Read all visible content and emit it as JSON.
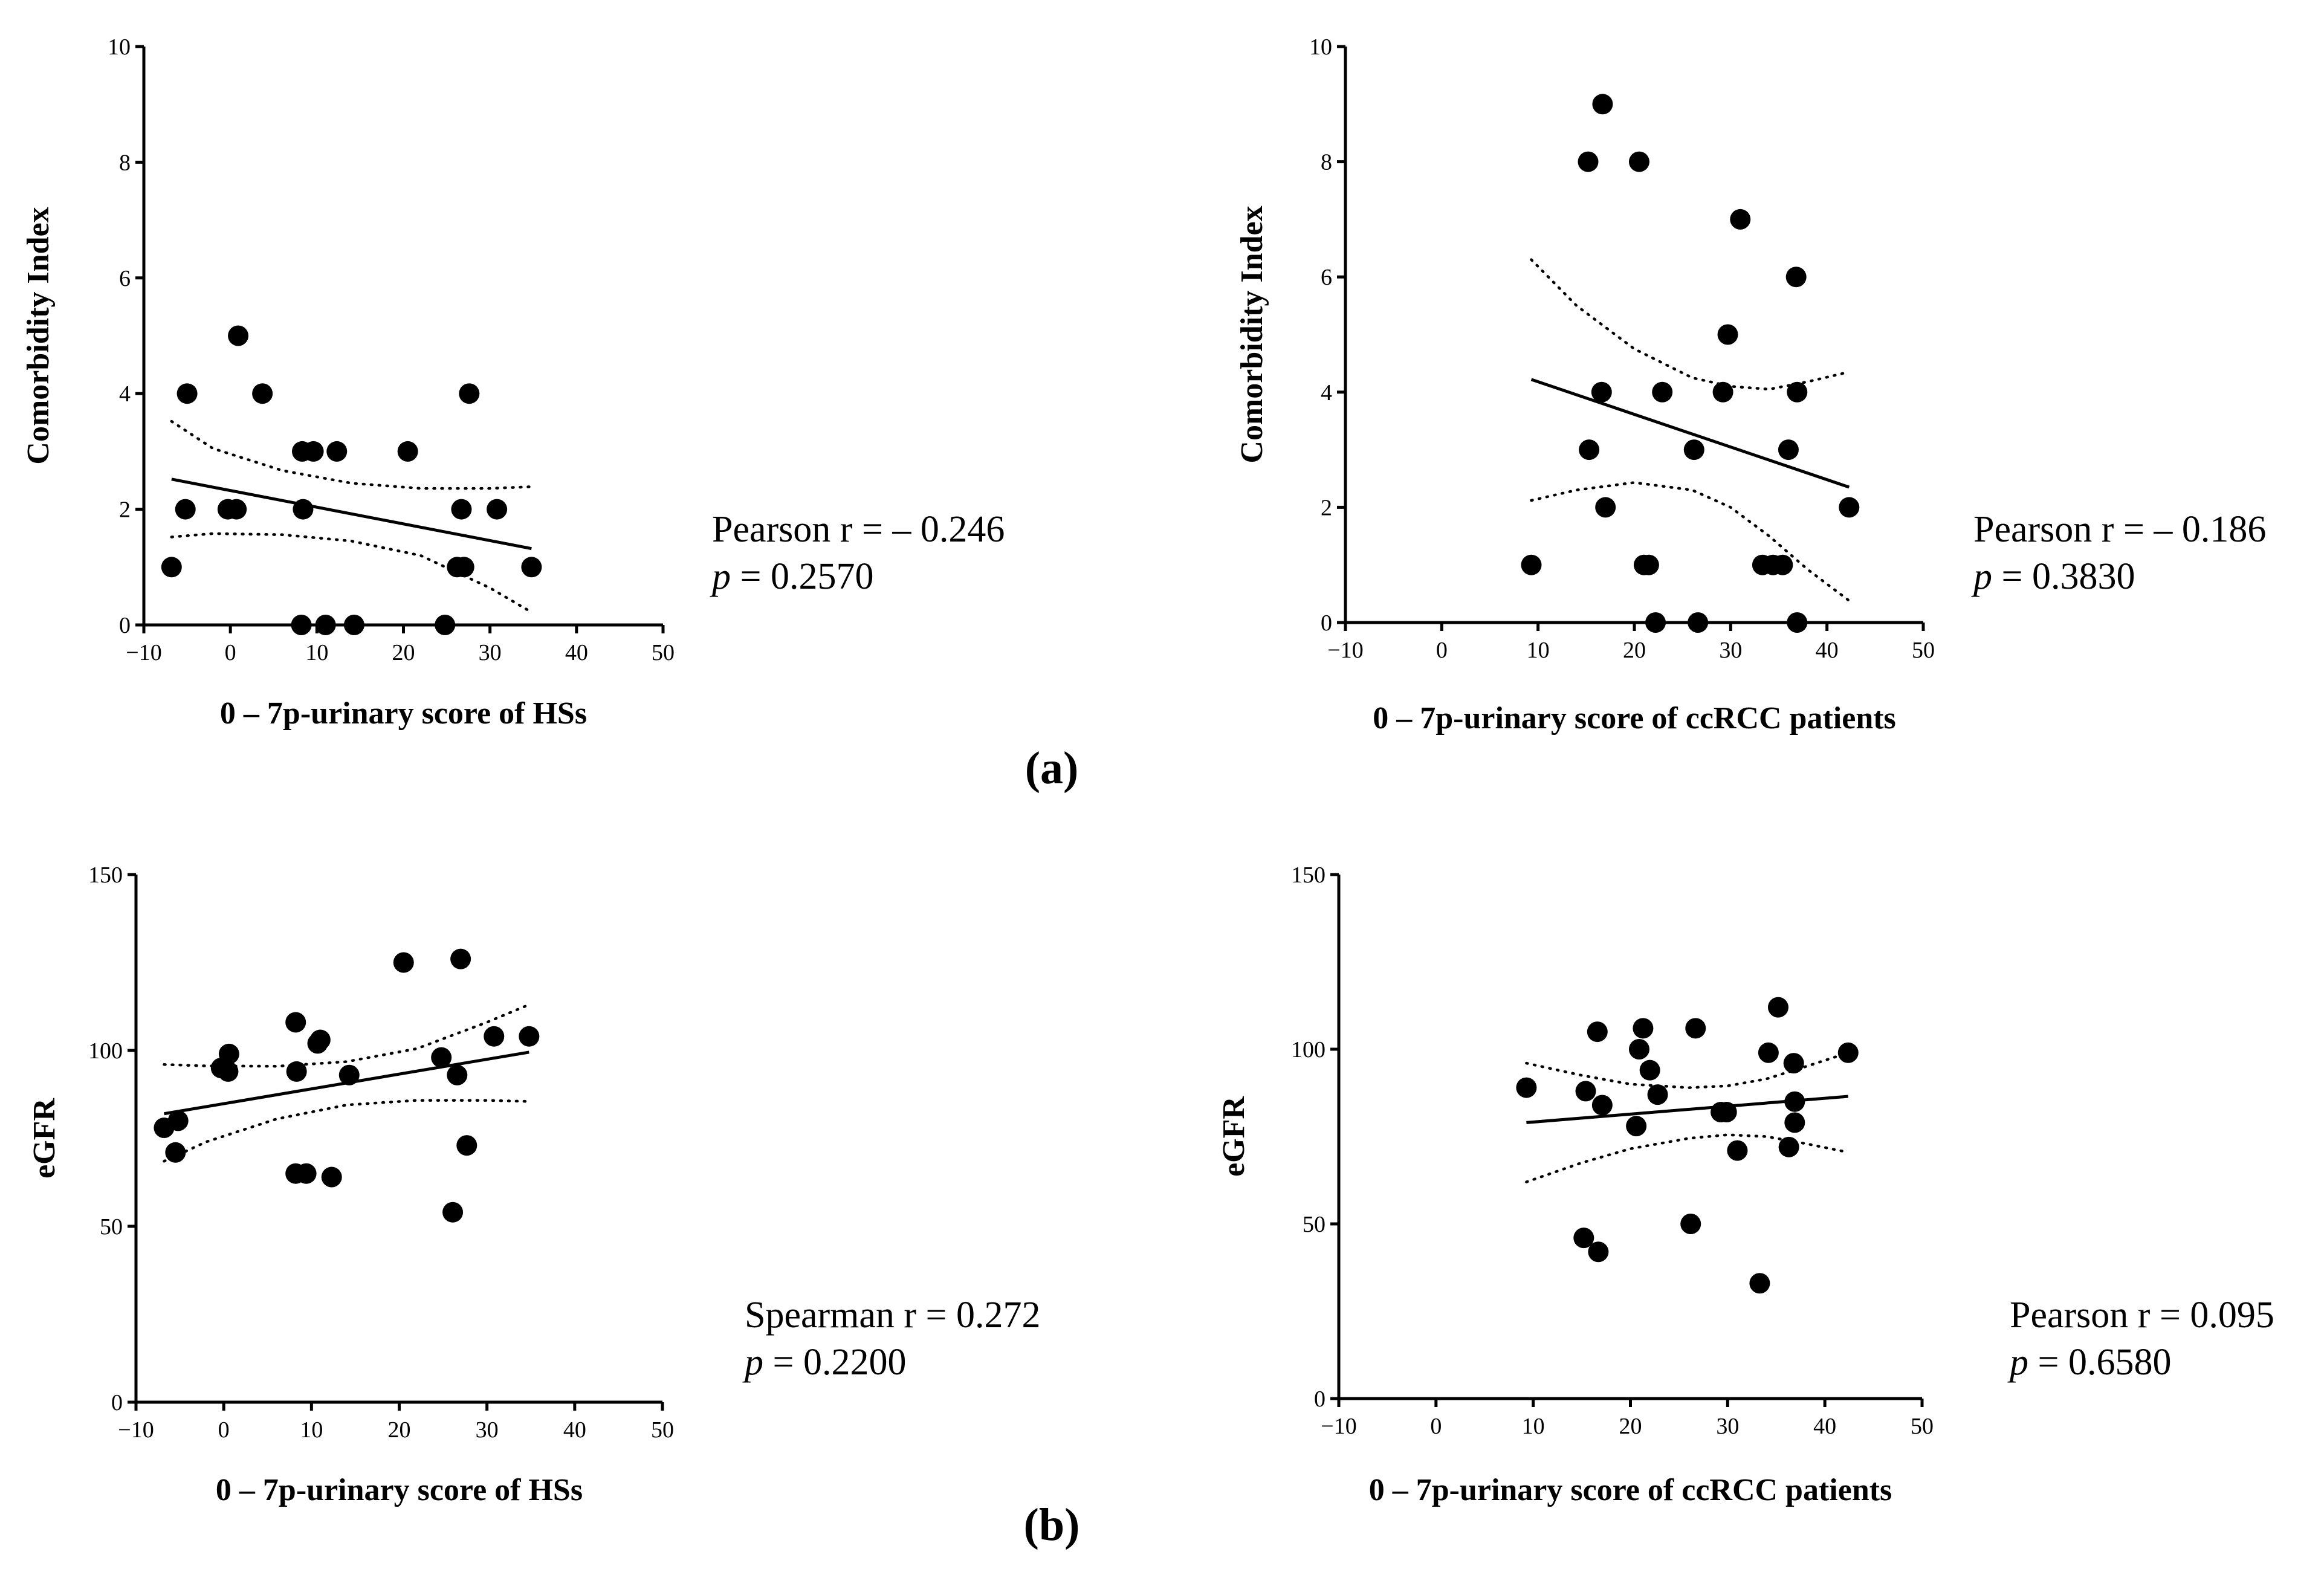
{
  "panel_labels": [
    "(a)",
    "(b)"
  ],
  "chart_data": [
    {
      "type": "scatter",
      "panel": "(a)",
      "title": "",
      "xlabel": "0 – 7p-urinary score of HSs",
      "ylabel": "Comorbidity Index",
      "xlim": [
        -10,
        50
      ],
      "ylim": [
        0,
        10
      ],
      "xticks": [
        -10,
        0,
        10,
        20,
        30,
        40,
        50
      ],
      "yticks": [
        0,
        2,
        4,
        6,
        8,
        10
      ],
      "xtick_labels": [
        "−10",
        "0",
        "10",
        "20",
        "30",
        "40",
        "50"
      ],
      "ytick_labels": [
        "0",
        "2",
        "4",
        "6",
        "8",
        "10"
      ],
      "points": [
        {
          "x": -6.8,
          "y": 1
        },
        {
          "x": -5.2,
          "y": 2
        },
        {
          "x": -5.0,
          "y": 4
        },
        {
          "x": -0.3,
          "y": 2
        },
        {
          "x": 0.7,
          "y": 2
        },
        {
          "x": 0.9,
          "y": 5
        },
        {
          "x": 3.7,
          "y": 4
        },
        {
          "x": 8.2,
          "y": 0
        },
        {
          "x": 8.3,
          "y": 3
        },
        {
          "x": 8.4,
          "y": 2
        },
        {
          "x": 9.6,
          "y": 3
        },
        {
          "x": 11.0,
          "y": 0
        },
        {
          "x": 12.3,
          "y": 3
        },
        {
          "x": 14.3,
          "y": 0
        },
        {
          "x": 20.5,
          "y": 3
        },
        {
          "x": 24.8,
          "y": 0
        },
        {
          "x": 26.2,
          "y": 1
        },
        {
          "x": 26.7,
          "y": 2
        },
        {
          "x": 27.0,
          "y": 1
        },
        {
          "x": 27.6,
          "y": 4
        },
        {
          "x": 30.8,
          "y": 2
        },
        {
          "x": 34.8,
          "y": 1
        }
      ],
      "regression": {
        "x": [
          -6.8,
          34.8
        ],
        "y": [
          2.52,
          1.32
        ]
      },
      "ci_upper": {
        "x": [
          -6.8,
          -2,
          6,
          14,
          22,
          30,
          34.8
        ],
        "y": [
          3.52,
          3.05,
          2.67,
          2.45,
          2.36,
          2.36,
          2.39
        ]
      },
      "ci_lower": {
        "x": [
          -6.8,
          -2,
          6,
          14,
          22,
          30,
          34.8
        ],
        "y": [
          1.52,
          1.58,
          1.56,
          1.45,
          1.2,
          0.64,
          0.22
        ]
      },
      "stats": {
        "line1": "Pearson r = – 0.246",
        "p_label": "p",
        "p_value": " = 0.2570"
      }
    },
    {
      "type": "scatter",
      "panel": "(a)",
      "title": "",
      "xlabel": "0 – 7p-urinary score of ccRCC patients",
      "ylabel": "Comorbidity Index",
      "xlim": [
        -10,
        50
      ],
      "ylim": [
        0,
        10
      ],
      "xticks": [
        -10,
        0,
        10,
        20,
        30,
        40,
        50
      ],
      "yticks": [
        0,
        2,
        4,
        6,
        8,
        10
      ],
      "xtick_labels": [
        "−10",
        "0",
        "10",
        "20",
        "30",
        "40",
        "50"
      ],
      "ytick_labels": [
        "0",
        "2",
        "4",
        "6",
        "8",
        "10"
      ],
      "points": [
        {
          "x": 9.3,
          "y": 1
        },
        {
          "x": 15.2,
          "y": 8
        },
        {
          "x": 15.3,
          "y": 3
        },
        {
          "x": 16.7,
          "y": 9
        },
        {
          "x": 16.6,
          "y": 4
        },
        {
          "x": 17.0,
          "y": 2
        },
        {
          "x": 20.5,
          "y": 8
        },
        {
          "x": 21.0,
          "y": 1
        },
        {
          "x": 21.5,
          "y": 1
        },
        {
          "x": 22.2,
          "y": 0
        },
        {
          "x": 22.9,
          "y": 4
        },
        {
          "x": 26.2,
          "y": 3
        },
        {
          "x": 26.6,
          "y": 0
        },
        {
          "x": 29.2,
          "y": 4
        },
        {
          "x": 29.7,
          "y": 5
        },
        {
          "x": 31.0,
          "y": 7
        },
        {
          "x": 33.3,
          "y": 1
        },
        {
          "x": 34.4,
          "y": 1
        },
        {
          "x": 35.4,
          "y": 1
        },
        {
          "x": 36.0,
          "y": 3
        },
        {
          "x": 36.8,
          "y": 6
        },
        {
          "x": 36.9,
          "y": 4
        },
        {
          "x": 36.9,
          "y": 0
        },
        {
          "x": 42.3,
          "y": 2
        }
      ],
      "regression": {
        "x": [
          9.3,
          42.3
        ],
        "y": [
          4.22,
          2.35
        ]
      },
      "ci_upper": {
        "x": [
          9.3,
          14,
          20,
          26,
          30,
          34,
          38,
          42.3
        ],
        "y": [
          6.3,
          5.5,
          4.75,
          4.25,
          4.1,
          4.05,
          4.18,
          4.35
        ]
      },
      "ci_lower": {
        "x": [
          9.3,
          14,
          20,
          26,
          30,
          34,
          38,
          42.3
        ],
        "y": [
          2.12,
          2.3,
          2.43,
          2.3,
          2.0,
          1.5,
          0.92,
          0.38
        ]
      },
      "stats": {
        "line1": "Pearson r = – 0.186",
        "p_label": "p",
        "p_value": " = 0.3830"
      }
    },
    {
      "type": "scatter",
      "panel": "(b)",
      "title": "",
      "xlabel": "0 – 7p-urinary score of HSs",
      "ylabel": "eGFR",
      "xlim": [
        -10,
        50
      ],
      "ylim": [
        0,
        150
      ],
      "xticks": [
        -10,
        0,
        10,
        20,
        30,
        40,
        50
      ],
      "yticks": [
        0,
        50,
        100,
        150
      ],
      "xtick_labels": [
        "−10",
        "0",
        "10",
        "20",
        "30",
        "40",
        "50"
      ],
      "ytick_labels": [
        "0",
        "50",
        "100",
        "150"
      ],
      "points": [
        {
          "x": -6.8,
          "y": 78
        },
        {
          "x": -5.2,
          "y": 80
        },
        {
          "x": -5.5,
          "y": 71
        },
        {
          "x": -0.3,
          "y": 95
        },
        {
          "x": 0.5,
          "y": 94
        },
        {
          "x": 0.6,
          "y": 99
        },
        {
          "x": 8.2,
          "y": 108
        },
        {
          "x": 8.3,
          "y": 94
        },
        {
          "x": 8.2,
          "y": 65
        },
        {
          "x": 9.4,
          "y": 65
        },
        {
          "x": 10.7,
          "y": 102
        },
        {
          "x": 11.0,
          "y": 103
        },
        {
          "x": 12.3,
          "y": 64
        },
        {
          "x": 14.3,
          "y": 93
        },
        {
          "x": 20.5,
          "y": 125
        },
        {
          "x": 24.8,
          "y": 98
        },
        {
          "x": 26.1,
          "y": 54
        },
        {
          "x": 26.6,
          "y": 93
        },
        {
          "x": 27.0,
          "y": 126
        },
        {
          "x": 27.7,
          "y": 73
        },
        {
          "x": 30.8,
          "y": 104
        },
        {
          "x": 34.8,
          "y": 104
        }
      ],
      "regression": {
        "x": [
          -6.8,
          34.8
        ],
        "y": [
          82.0,
          99.5
        ]
      },
      "ci_upper": {
        "x": [
          -6.8,
          -2,
          6,
          14,
          22,
          30,
          34.8
        ],
        "y": [
          96,
          95.6,
          95.5,
          96.8,
          100.5,
          108,
          113
        ]
      },
      "ci_lower": {
        "x": [
          -6.8,
          -2,
          6,
          14,
          22,
          30,
          34.8
        ],
        "y": [
          68.5,
          74,
          80.5,
          84.5,
          85.8,
          85.8,
          85.5
        ]
      },
      "stats": {
        "line1": "Spearman r = 0.272",
        "p_label": "p",
        "p_value": " = 0.2200"
      }
    },
    {
      "type": "scatter",
      "panel": "(b)",
      "title": "",
      "xlabel": "0 – 7p-urinary score of ccRCC patients",
      "ylabel": "eGFR",
      "xlim": [
        -10,
        50
      ],
      "ylim": [
        0,
        150
      ],
      "xticks": [
        -10,
        0,
        10,
        20,
        30,
        40,
        50
      ],
      "yticks": [
        0,
        50,
        100,
        150
      ],
      "xtick_labels": [
        "−10",
        "0",
        "10",
        "20",
        "30",
        "40",
        "50"
      ],
      "ytick_labels": [
        "0",
        "50",
        "100",
        "150"
      ],
      "points": [
        {
          "x": 9.3,
          "y": 89
        },
        {
          "x": 15.2,
          "y": 46
        },
        {
          "x": 15.4,
          "y": 88
        },
        {
          "x": 16.6,
          "y": 105
        },
        {
          "x": 16.7,
          "y": 42
        },
        {
          "x": 17.1,
          "y": 84
        },
        {
          "x": 20.6,
          "y": 78
        },
        {
          "x": 20.9,
          "y": 100
        },
        {
          "x": 21.3,
          "y": 106
        },
        {
          "x": 22.0,
          "y": 94
        },
        {
          "x": 22.8,
          "y": 87
        },
        {
          "x": 26.2,
          "y": 50
        },
        {
          "x": 26.7,
          "y": 106
        },
        {
          "x": 29.3,
          "y": 82
        },
        {
          "x": 29.9,
          "y": 82
        },
        {
          "x": 31.0,
          "y": 71
        },
        {
          "x": 33.3,
          "y": 33
        },
        {
          "x": 34.2,
          "y": 99
        },
        {
          "x": 35.2,
          "y": 112
        },
        {
          "x": 36.3,
          "y": 72
        },
        {
          "x": 36.8,
          "y": 96
        },
        {
          "x": 36.9,
          "y": 85
        },
        {
          "x": 36.9,
          "y": 79
        },
        {
          "x": 42.4,
          "y": 99
        }
      ],
      "regression": {
        "x": [
          9.3,
          42.4
        ],
        "y": [
          79.0,
          86.5
        ]
      },
      "ci_upper": {
        "x": [
          9.3,
          15,
          20,
          26,
          30,
          34,
          38,
          42.4
        ],
        "y": [
          96,
          92.5,
          90,
          89,
          89.5,
          91.5,
          95,
          99
        ]
      },
      "ci_lower": {
        "x": [
          9.3,
          15,
          20,
          26,
          30,
          34,
          38,
          42.4
        ],
        "y": [
          62,
          67.5,
          71.5,
          74.5,
          75.5,
          75,
          73,
          70.5
        ]
      },
      "stats": {
        "line1": "Pearson r = 0.095",
        "p_label": "p",
        "p_value": " = 0.6580"
      }
    }
  ]
}
